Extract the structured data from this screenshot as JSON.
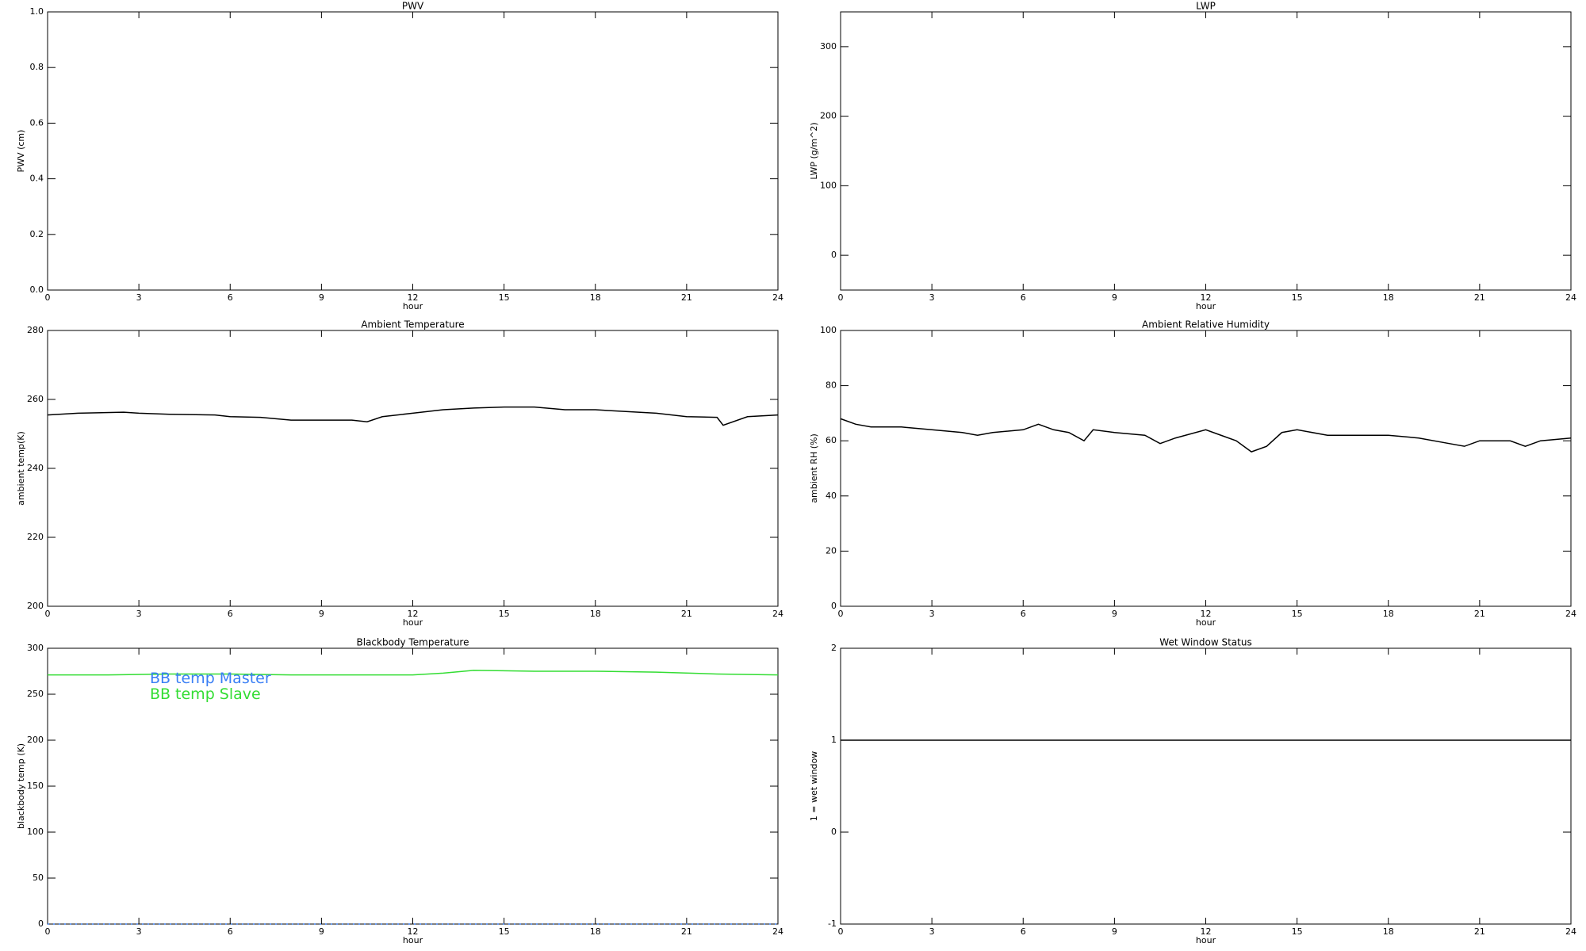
{
  "chart_data": [
    {
      "type": "line",
      "title": "PWV",
      "x_label": "hour",
      "y_label": "PWV (cm)",
      "xlim": [
        0,
        24
      ],
      "xticks": [
        0,
        3,
        6,
        9,
        12,
        15,
        18,
        21,
        24
      ],
      "ylim": [
        0,
        1
      ],
      "yticks": [
        {
          "value": 0,
          "label": "0.0"
        },
        0.2,
        0.4,
        0.6,
        0.8,
        {
          "value": 1,
          "label": "1.0"
        }
      ],
      "series": []
    },
    {
      "type": "line",
      "title": "LWP",
      "x_label": "hour",
      "y_label": "LWP (g/m^2)",
      "xlim": [
        0,
        24
      ],
      "xticks": [
        0,
        3,
        6,
        9,
        12,
        15,
        18,
        21,
        24
      ],
      "ylim": [
        -50,
        350
      ],
      "yticks": [
        0,
        100,
        200,
        300
      ],
      "series": []
    },
    {
      "type": "line",
      "title": "Ambient Temperature",
      "x_label": "hour",
      "y_label": "ambient temp(K)",
      "xlim": [
        0,
        24
      ],
      "xticks": [
        0,
        3,
        6,
        9,
        12,
        15,
        18,
        21,
        24
      ],
      "ylim": [
        200,
        280
      ],
      "yticks": [
        200,
        220,
        240,
        260,
        280
      ],
      "x": [
        0,
        1,
        2.5,
        3,
        4,
        5.5,
        6,
        7,
        8,
        9,
        10,
        10.5,
        11,
        12,
        13,
        14,
        15,
        16,
        17,
        18,
        19,
        20,
        21,
        22,
        22.2,
        23,
        24
      ],
      "series": [
        {
          "color": "#000000",
          "values": [
            255.5,
            256,
            256.3,
            256,
            255.7,
            255.5,
            255,
            254.8,
            254,
            254,
            254,
            253.5,
            255,
            256,
            257,
            257.5,
            257.8,
            257.8,
            257,
            257,
            256.5,
            256,
            255,
            254.8,
            252.5,
            255,
            255.5
          ]
        }
      ]
    },
    {
      "type": "line",
      "title": "Ambient Relative Humidity",
      "x_label": "hour",
      "y_label": "ambient RH (%)",
      "xlim": [
        0,
        24
      ],
      "xticks": [
        0,
        3,
        6,
        9,
        12,
        15,
        18,
        21,
        24
      ],
      "ylim": [
        0,
        100
      ],
      "yticks": [
        0,
        20,
        40,
        60,
        80,
        100
      ],
      "x": [
        0,
        0.5,
        1,
        2,
        3,
        4,
        4.5,
        5,
        6,
        6.5,
        7,
        7.5,
        8,
        8.3,
        9,
        10,
        10.5,
        11,
        12,
        12.5,
        13,
        13.5,
        14,
        14.5,
        15,
        16,
        17,
        18,
        19,
        20,
        20.5,
        21,
        22,
        22.5,
        23,
        24
      ],
      "series": [
        {
          "color": "#000000",
          "values": [
            68,
            66,
            65,
            65,
            64,
            63,
            62,
            63,
            64,
            66,
            64,
            63,
            60,
            64,
            63,
            62,
            59,
            61,
            64,
            62,
            60,
            56,
            58,
            63,
            64,
            62,
            62,
            62,
            61,
            59,
            58,
            60,
            60,
            58,
            60,
            61
          ]
        }
      ]
    },
    {
      "type": "line",
      "title": "Blackbody Temperature",
      "x_label": "hour",
      "y_label": "blackbody temp (K)",
      "xlim": [
        0,
        24
      ],
      "xticks": [
        0,
        3,
        6,
        9,
        12,
        15,
        18,
        21,
        24
      ],
      "ylim": [
        0,
        300
      ],
      "yticks": [
        0,
        50,
        100,
        150,
        200,
        250,
        300
      ],
      "legend": "upper left",
      "x": [
        0,
        2,
        4,
        6,
        8,
        10,
        12,
        13,
        14,
        16,
        18,
        20,
        22,
        24
      ],
      "series": [
        {
          "name": "BB temp Master",
          "color": "#3a7ff5",
          "linestyle": "dotted",
          "values": [
            0,
            0,
            0,
            0,
            0,
            0,
            0,
            0,
            0,
            0,
            0,
            0,
            0,
            0
          ]
        },
        {
          "name": "BB temp Slave",
          "color": "#33dd33",
          "linestyle": "solid",
          "values": [
            271,
            271,
            272,
            272,
            271,
            271,
            271,
            273,
            276,
            275,
            275,
            274,
            272,
            271
          ]
        }
      ]
    },
    {
      "type": "line",
      "title": "Wet Window Status",
      "x_label": "hour",
      "y_label": "1 = wet window",
      "xlim": [
        0,
        24
      ],
      "xticks": [
        0,
        3,
        6,
        9,
        12,
        15,
        18,
        21,
        24
      ],
      "ylim": [
        -1,
        2
      ],
      "yticks": [
        -1,
        0,
        1,
        2
      ],
      "x": [
        0,
        24
      ],
      "series": [
        {
          "color": "#000000",
          "values": [
            1,
            1
          ]
        }
      ]
    }
  ]
}
